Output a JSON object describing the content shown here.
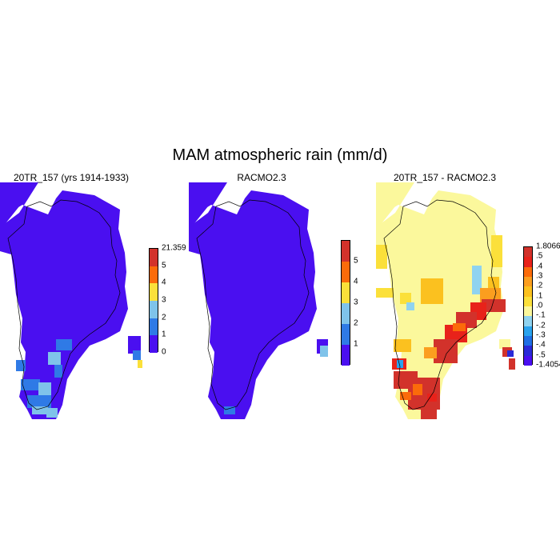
{
  "title": "MAM atmospheric rain (mm/d)",
  "panels": [
    {
      "title": "20TR_157 (yrs 1914-1933)",
      "colorbar": {
        "colors": [
          "#4a0ff0",
          "#2f7ae6",
          "#7fc3ea",
          "#fbe03a",
          "#fb6b0a",
          "#d2322b"
        ],
        "labels": [
          "0",
          "1",
          "2",
          "3",
          "4",
          "5",
          "21.359"
        ]
      }
    },
    {
      "title": "RACMO2.3",
      "colorbar": {
        "colors": [
          "#4a0ff0",
          "#2f7ae6",
          "#7fc3ea",
          "#fbe03a",
          "#fb6b0a",
          "#d2322b"
        ],
        "labels": [
          "1",
          "2",
          "3",
          "4",
          "5"
        ]
      }
    },
    {
      "title": "20TR_157 - RACMO2.3",
      "colorbar": {
        "colors": [
          "#4a0ff0",
          "#2a2ad8",
          "#1f6fe5",
          "#2aa3ee",
          "#8fd3f0",
          "#fbf89c",
          "#fbe03a",
          "#fbc11f",
          "#fb9e1f",
          "#fb6b0a",
          "#e8221a",
          "#d2322b"
        ],
        "labels": [
          "-1.4054",
          "-.5",
          "-.4",
          "-.3",
          "-.2",
          "-.1",
          ".0",
          ".1",
          ".2",
          ".3",
          ".4",
          ".5",
          "1.8066"
        ]
      }
    }
  ]
}
